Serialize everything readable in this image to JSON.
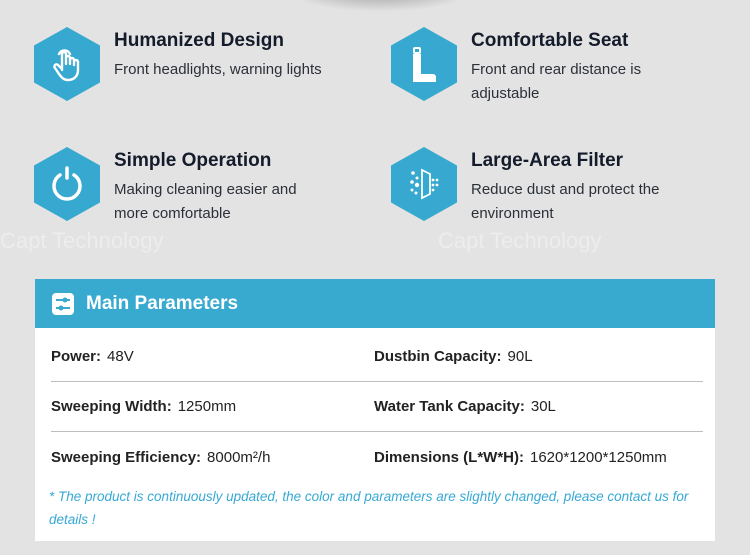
{
  "features": [
    {
      "icon": "hand-tap-icon",
      "title": "Humanized Design",
      "desc": "Front headlights, warning lights"
    },
    {
      "icon": "seat-icon",
      "title": "Comfortable Seat",
      "desc": "Front and rear distance is adjustable"
    },
    {
      "icon": "power-icon",
      "title": "Simple Operation",
      "desc": "Making cleaning easier and more comfortable"
    },
    {
      "icon": "filter-icon",
      "title": "Large-Area Filter",
      "desc": "Reduce dust and protect the environment"
    }
  ],
  "watermark": "Capt Technology",
  "params": {
    "title": "Main Parameters",
    "icon": "sliders-icon",
    "rows": [
      [
        {
          "label": "Power:",
          "value": "48V"
        },
        {
          "label": "Dustbin Capacity:",
          "value": "90L"
        }
      ],
      [
        {
          "label": "Sweeping Width:",
          "value": "1250mm"
        },
        {
          "label": "Water Tank Capacity:",
          "value": "30L"
        }
      ],
      [
        {
          "label": "Sweeping Efficiency:",
          "value": "8000m²/h"
        },
        {
          "label": "Dimensions (L*W*H):",
          "value": "1620*1200*1250mm"
        }
      ]
    ],
    "note": "* The product is continuously updated, the color and parameters are slightly changed, please contact us for details !"
  },
  "colors": {
    "accent": "#38a9cf",
    "background": "#e3e3e3",
    "note": "#37a9d5"
  }
}
